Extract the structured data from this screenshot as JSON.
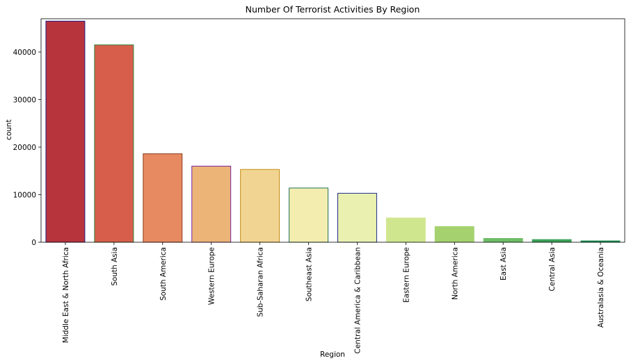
{
  "chart_data": {
    "type": "bar",
    "title": "Number Of Terrorist Activities By Region",
    "xlabel": "Region",
    "ylabel": "count",
    "ylim": [
      0,
      47000
    ],
    "yticks": [
      0,
      10000,
      20000,
      30000,
      40000
    ],
    "grid": false,
    "categories": [
      "Middle East & North Africa",
      "South Asia",
      "South America",
      "Western Europe",
      "Sub-Saharan Africa",
      "Southeast Asia",
      "Central America & Caribbean",
      "Eastern Europe",
      "North America",
      "East Asia",
      "Central Asia",
      "Australasia & Oceania"
    ],
    "values": [
      46500,
      41500,
      18600,
      16000,
      15300,
      11400,
      10300,
      5100,
      3300,
      800,
      560,
      280
    ],
    "bar_colors": [
      "#b8343d",
      "#d75e4b",
      "#e78a62",
      "#ecb477",
      "#f2d492",
      "#f3eeaf",
      "#eaf1b0",
      "#cfe68f",
      "#a5d26f",
      "#6fbd68",
      "#3ca15a",
      "#198a4f"
    ],
    "edge_colors": [
      "#1f1f8a",
      "#2e7d32",
      "#8b3a1a",
      "#7b1fa2",
      "#c48a12",
      "#1f6e5a",
      "#1f2a8a",
      "#cfe68f",
      "#a5d26f",
      "#6fbd68",
      "#3ca15a",
      "#198a4f"
    ]
  }
}
